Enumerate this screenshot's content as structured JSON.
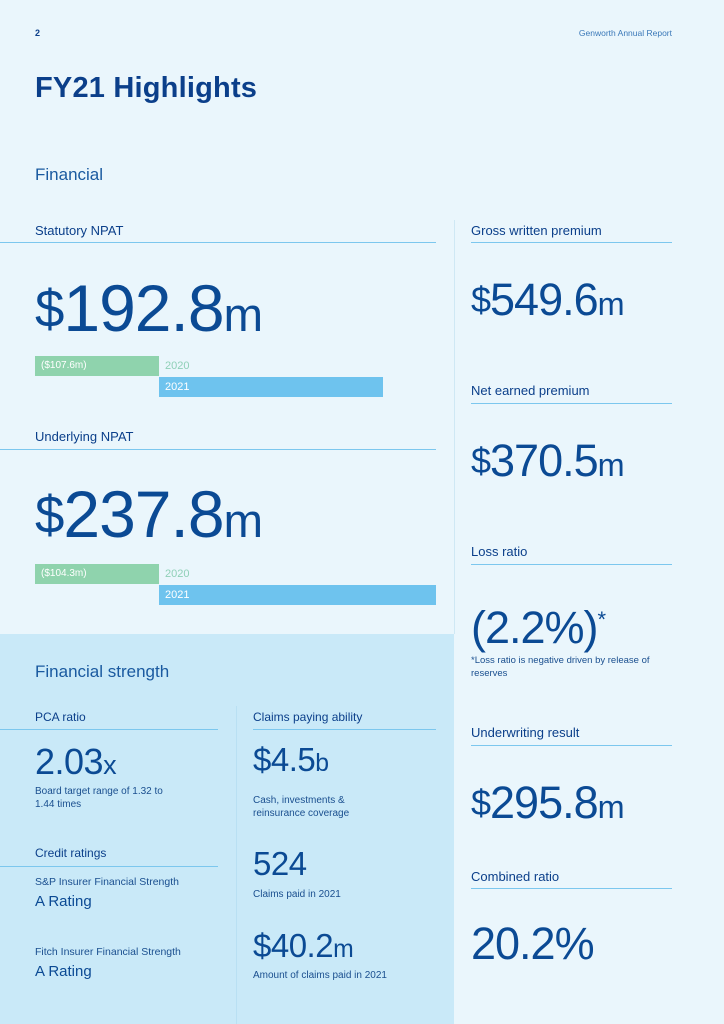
{
  "header": {
    "page_number": "2",
    "report_title": "Genworth Annual Report"
  },
  "title": "FY21 Highlights",
  "financial": {
    "section_title": "Financial",
    "statutory_npat": {
      "label": "Statutory NPAT",
      "dollar": "$",
      "value": "192.8",
      "unit": "m",
      "prior_value": "($107.6m)",
      "prior_year": "2020",
      "current_year": "2021"
    },
    "underlying_npat": {
      "label": "Underlying NPAT",
      "dollar": "$",
      "value": "237.8",
      "unit": "m",
      "prior_value": "($104.3m)",
      "prior_year": "2020",
      "current_year": "2021"
    }
  },
  "right_column": {
    "gross_written_premium": {
      "label": "Gross written premium",
      "dollar": "$",
      "value": "549.6",
      "unit": "m"
    },
    "net_earned_premium": {
      "label": "Net earned premium",
      "dollar": "$",
      "value": "370.5",
      "unit": "m"
    },
    "loss_ratio": {
      "label": "Loss ratio",
      "value": "(2.2%)",
      "asterisk": "*",
      "footnote": "*Loss ratio is negative driven by release of reserves"
    },
    "underwriting_result": {
      "label": "Underwriting result",
      "dollar": "$",
      "value": "295.8",
      "unit": "m"
    },
    "combined_ratio": {
      "label": "Combined ratio",
      "value": "20.2%"
    }
  },
  "financial_strength": {
    "section_title": "Financial strength",
    "pca_ratio": {
      "label": "PCA ratio",
      "value": "2.03",
      "unit": "x",
      "note": "Board target range of 1.32 to 1.44 times"
    },
    "credit_ratings": {
      "label": "Credit ratings",
      "sp_label": "S&P Insurer Financial Strength",
      "sp_rating": "A Rating",
      "fitch_label": "Fitch Insurer Financial Strength",
      "fitch_rating": "A Rating"
    },
    "claims_paying": {
      "label": "Claims paying ability",
      "value": "$4.5",
      "unit": "b",
      "note": "Cash, investments & reinsurance coverage"
    },
    "claims_paid_count": {
      "value": "524",
      "note": "Claims paid in 2021"
    },
    "claims_paid_amount": {
      "value": "$40.2",
      "unit": "m",
      "note": "Amount of claims paid in 2021"
    }
  },
  "colors": {
    "background": "#eaf6fc",
    "panel": "#c9e9f8",
    "navy": "#0b3f8a",
    "rule": "#7cc7ee",
    "bar_2020": "#8fd3ad",
    "bar_2021": "#6ec3ee"
  }
}
